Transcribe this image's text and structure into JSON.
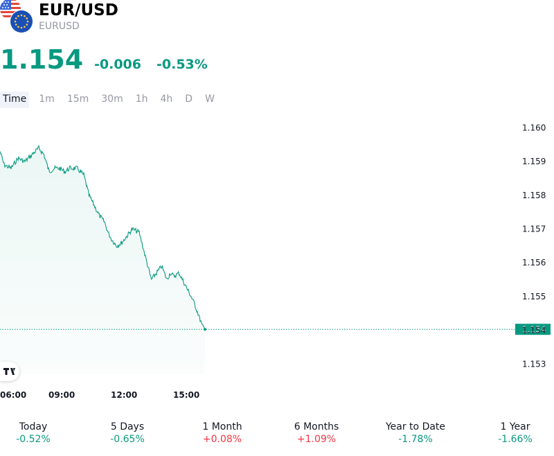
{
  "header": {
    "title": "EUR/USD",
    "subtitle": "EURUSD",
    "price": "1.154",
    "change_abs": "-0.006",
    "change_pct": "-0.53%"
  },
  "tabs": [
    {
      "label": "Time",
      "active": true
    },
    {
      "label": "1m"
    },
    {
      "label": "15m"
    },
    {
      "label": "30m"
    },
    {
      "label": "1h"
    },
    {
      "label": "4h"
    },
    {
      "label": "D"
    },
    {
      "label": "W"
    }
  ],
  "chart_data": {
    "type": "area",
    "x_tick_labels": [
      "06:00",
      "09:00",
      "12:00",
      "15:00"
    ],
    "y_tick_labels": [
      "1.160",
      "1.159",
      "1.158",
      "1.157",
      "1.156",
      "1.155",
      "1.154",
      "1.153"
    ],
    "ylim": [
      1.1527,
      1.1605
    ],
    "last_price_label": "1.154",
    "last_price_value": 1.15403,
    "series": [
      {
        "x": [
          "05:58",
          "06:10",
          "06:30",
          "06:50",
          "07:10",
          "07:30",
          "07:50",
          "08:05",
          "08:20",
          "08:35",
          "08:50",
          "09:05",
          "09:20",
          "09:40",
          "10:00",
          "10:15",
          "10:30",
          "10:45",
          "11:00",
          "11:10",
          "11:20",
          "11:35",
          "11:50",
          "12:05",
          "12:20",
          "12:40",
          "13:00",
          "13:15",
          "13:30",
          "13:45",
          "14:00",
          "14:10",
          "14:20",
          "14:35",
          "14:50",
          "15:00",
          "15:15",
          "15:30",
          "15:40",
          "15:50"
        ],
        "y": [
          1.1593,
          1.1589,
          1.1588,
          1.1591,
          1.159,
          1.1592,
          1.1594,
          1.1592,
          1.1587,
          1.1588,
          1.1588,
          1.1587,
          1.1588,
          1.1588,
          1.1586,
          1.158,
          1.1577,
          1.1574,
          1.1572,
          1.1569,
          1.1567,
          1.1565,
          1.1566,
          1.1568,
          1.157,
          1.1569,
          1.1561,
          1.1555,
          1.1557,
          1.1559,
          1.1555,
          1.1557,
          1.1556,
          1.1557,
          1.1554,
          1.1552,
          1.1549,
          1.1545,
          1.1542,
          1.15403
        ]
      }
    ],
    "colors": {
      "line": "#089981",
      "fill": "#e8f5f2",
      "last_price_bg": "#089981"
    },
    "grid": false
  },
  "periods": [
    {
      "label": "Today",
      "value": "-0.52%",
      "dir": "neg"
    },
    {
      "label": "5 Days",
      "value": "-0.65%",
      "dir": "neg"
    },
    {
      "label": "1 Month",
      "value": "+0.08%",
      "dir": "pos"
    },
    {
      "label": "6 Months",
      "value": "+1.09%",
      "dir": "pos"
    },
    {
      "label": "Year to Date",
      "value": "-1.78%",
      "dir": "neg"
    },
    {
      "label": "1 Year",
      "value": "-1.66%",
      "dir": "neg"
    }
  ],
  "icons": [
    "us-flag-icon",
    "eu-flag-icon",
    "tradingview-logo-icon"
  ]
}
